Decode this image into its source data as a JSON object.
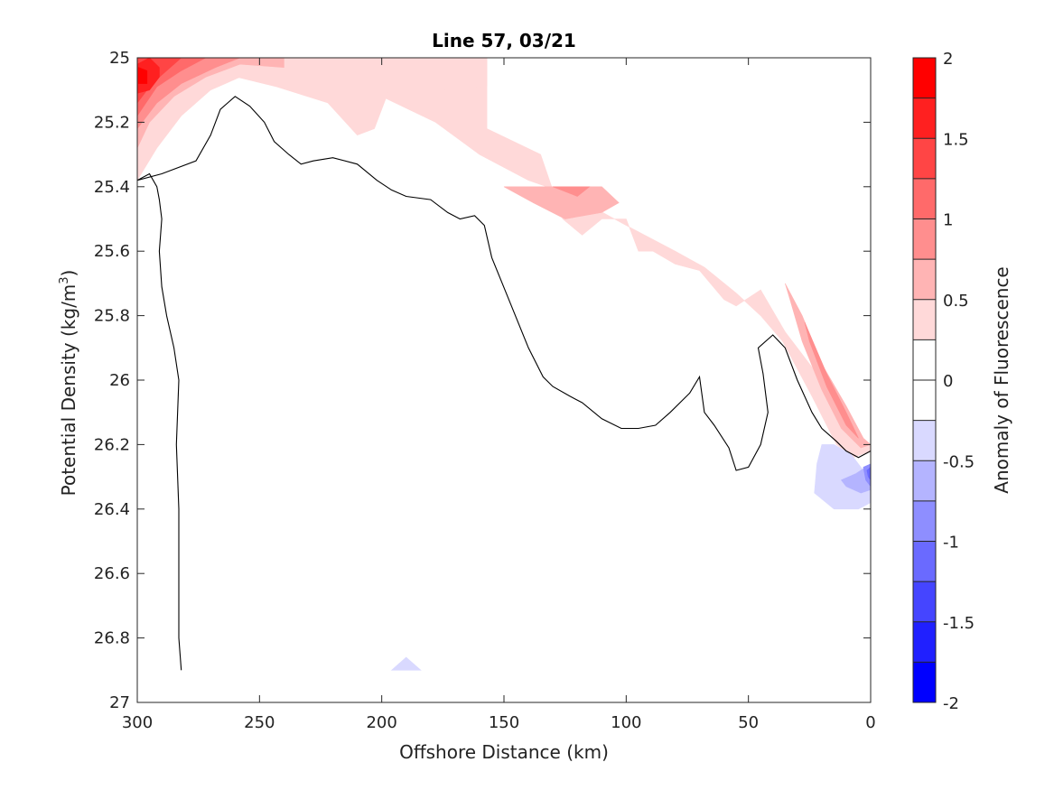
{
  "chart_data": {
    "type": "contour",
    "title": "Line 57, 03/21",
    "xlabel": "Offshore Distance (km)",
    "ylabel_main": "Potential Density (kg/m",
    "ylabel_sup": "3",
    "ylabel_close": ")",
    "xlim": [
      300,
      0
    ],
    "ylim": [
      27,
      25
    ],
    "x_reversed": true,
    "y_reversed": true,
    "xticks": [
      300,
      250,
      200,
      150,
      100,
      50,
      0
    ],
    "xtick_labels": [
      "300",
      "250",
      "200",
      "150",
      "100",
      "50",
      "0"
    ],
    "yticks": [
      25,
      25.2,
      25.4,
      25.6,
      25.8,
      26,
      26.2,
      26.4,
      26.6,
      26.8,
      27
    ],
    "ytick_labels": [
      "25",
      "25.2",
      "25.4",
      "25.6",
      "25.8",
      "26",
      "26.2",
      "26.4",
      "26.6",
      "26.8",
      "27"
    ],
    "grid": false,
    "colorbar": {
      "label": "Anomaly of Fluorescence",
      "range": [
        -2,
        2
      ],
      "tick_values": [
        2,
        1.5,
        1,
        0.5,
        0,
        -0.5,
        -1,
        -1.5,
        -2
      ],
      "tick_labels": [
        "2",
        "1.5",
        "1",
        "0.5",
        "0",
        "-0.5",
        "-1",
        "-1.5",
        "-2"
      ],
      "bins": [
        {
          "lo": 1.75,
          "hi": 2.0,
          "color": "#ff0000"
        },
        {
          "lo": 1.5,
          "hi": 1.75,
          "color": "#ff2020"
        },
        {
          "lo": 1.25,
          "hi": 1.5,
          "color": "#ff4545"
        },
        {
          "lo": 1.0,
          "hi": 1.25,
          "color": "#ff6a6a"
        },
        {
          "lo": 0.75,
          "hi": 1.0,
          "color": "#ff8e8e"
        },
        {
          "lo": 0.5,
          "hi": 0.75,
          "color": "#ffb4b4"
        },
        {
          "lo": 0.25,
          "hi": 0.5,
          "color": "#ffd9d9"
        },
        {
          "lo": 0.0,
          "hi": 0.25,
          "color": "#ffffff"
        },
        {
          "lo": -0.25,
          "hi": 0.0,
          "color": "#ffffff"
        },
        {
          "lo": -0.5,
          "hi": -0.25,
          "color": "#d9d9ff"
        },
        {
          "lo": -0.75,
          "hi": -0.5,
          "color": "#b4b4ff"
        },
        {
          "lo": -1.0,
          "hi": -0.75,
          "color": "#8e8eff"
        },
        {
          "lo": -1.25,
          "hi": -1.0,
          "color": "#6a6aff"
        },
        {
          "lo": -1.5,
          "hi": -1.25,
          "color": "#4545ff"
        },
        {
          "lo": -1.75,
          "hi": -1.5,
          "color": "#2020ff"
        },
        {
          "lo": -2.0,
          "hi": -1.75,
          "color": "#0000ff"
        }
      ]
    },
    "regions": [
      {
        "level": 0.25,
        "color": "#ffd9d9",
        "points": [
          [
            300,
            25.38
          ],
          [
            300,
            25.0
          ],
          [
            157,
            25.0
          ],
          [
            157,
            25.22
          ],
          [
            135,
            25.3
          ],
          [
            126,
            25.5
          ],
          [
            118,
            25.55
          ],
          [
            110,
            25.5
          ],
          [
            100,
            25.5
          ],
          [
            95,
            25.6
          ],
          [
            89,
            25.6
          ],
          [
            80,
            25.64
          ],
          [
            70,
            25.66
          ],
          [
            60,
            25.75
          ],
          [
            55,
            25.77
          ],
          [
            45,
            25.72
          ],
          [
            35,
            25.85
          ],
          [
            25,
            25.95
          ],
          [
            15,
            26.05
          ],
          [
            5,
            26.18
          ],
          [
            0,
            26.2
          ],
          [
            0,
            26.22
          ],
          [
            7,
            26.24
          ],
          [
            14,
            26.2
          ],
          [
            24,
            26.05
          ],
          [
            36,
            25.88
          ],
          [
            45,
            25.8
          ],
          [
            55,
            25.73
          ],
          [
            68,
            25.65
          ],
          [
            80,
            25.6
          ],
          [
            90,
            25.56
          ],
          [
            100,
            25.52
          ],
          [
            112,
            25.47
          ],
          [
            125,
            25.42
          ],
          [
            140,
            25.38
          ],
          [
            160,
            25.3
          ],
          [
            178,
            25.2
          ],
          [
            200,
            25.12
          ],
          [
            218,
            25.06
          ],
          [
            238,
            25.04
          ],
          [
            255,
            25.05
          ],
          [
            270,
            25.1
          ],
          [
            282,
            25.18
          ],
          [
            292,
            25.28
          ]
        ]
      },
      {
        "level": 0.25,
        "color": "#ffd9d9",
        "points": [
          [
            300,
            25.0
          ],
          [
            157,
            25.0
          ],
          [
            157,
            25.09
          ],
          [
            175,
            25.1
          ],
          [
            197,
            25.1
          ],
          [
            203,
            25.22
          ],
          [
            210,
            25.24
          ],
          [
            222,
            25.14
          ],
          [
            243,
            25.09
          ],
          [
            270,
            25.04
          ],
          [
            300,
            25.04
          ]
        ]
      },
      {
        "level": 0.5,
        "color": "#ffb4b4",
        "points": [
          [
            300,
            25.28
          ],
          [
            300,
            25.0
          ],
          [
            240,
            25.0
          ],
          [
            240,
            25.03
          ],
          [
            258,
            25.02
          ],
          [
            272,
            25.06
          ],
          [
            285,
            25.12
          ],
          [
            295,
            25.2
          ]
        ]
      },
      {
        "level": 0.5,
        "color": "#ffb4b4",
        "points": [
          [
            150,
            25.4
          ],
          [
            110,
            25.4
          ],
          [
            103,
            25.45
          ],
          [
            110,
            25.48
          ],
          [
            125,
            25.5
          ],
          [
            138,
            25.45
          ]
        ]
      },
      {
        "level": 0.5,
        "color": "#ffb4b4",
        "points": [
          [
            35,
            25.7
          ],
          [
            28,
            25.8
          ],
          [
            20,
            25.95
          ],
          [
            10,
            26.08
          ],
          [
            3,
            26.18
          ],
          [
            0,
            26.2
          ],
          [
            4,
            26.21
          ],
          [
            12,
            26.15
          ],
          [
            20,
            26.03
          ],
          [
            28,
            25.88
          ],
          [
            33,
            25.75
          ]
        ]
      },
      {
        "level": 0.75,
        "color": "#ff8e8e",
        "points": [
          [
            300,
            25.22
          ],
          [
            300,
            25.0
          ],
          [
            258,
            25.0
          ],
          [
            268,
            25.03
          ],
          [
            282,
            25.08
          ],
          [
            292,
            25.14
          ]
        ]
      },
      {
        "level": 0.75,
        "color": "#ff8e8e",
        "points": [
          [
            130,
            25.4
          ],
          [
            115,
            25.4
          ],
          [
            120,
            25.43
          ]
        ]
      },
      {
        "level": 0.75,
        "color": "#ff8e8e",
        "points": [
          [
            27,
            25.82
          ],
          [
            18,
            25.98
          ],
          [
            10,
            26.1
          ],
          [
            5,
            26.18
          ],
          [
            10,
            26.14
          ],
          [
            18,
            26.02
          ],
          [
            25,
            25.88
          ]
        ]
      },
      {
        "level": 1.0,
        "color": "#ff6a6a",
        "points": [
          [
            300,
            25.18
          ],
          [
            300,
            25.0
          ],
          [
            272,
            25.0
          ],
          [
            282,
            25.04
          ],
          [
            292,
            25.09
          ]
        ]
      },
      {
        "level": 1.25,
        "color": "#ff4545",
        "points": [
          [
            300,
            25.14
          ],
          [
            300,
            25.0
          ],
          [
            282,
            25.0
          ],
          [
            288,
            25.04
          ],
          [
            294,
            25.08
          ]
        ]
      },
      {
        "level": 1.5,
        "color": "#ff2020",
        "points": [
          [
            300,
            25.11
          ],
          [
            300,
            25.02
          ],
          [
            295,
            25.0
          ],
          [
            291,
            25.03
          ],
          [
            291,
            25.06
          ],
          [
            295,
            25.1
          ]
        ]
      },
      {
        "level": 1.75,
        "color": "#ff0000",
        "points": [
          [
            299.5,
            25.08
          ],
          [
            299.5,
            25.03
          ],
          [
            296,
            25.04
          ],
          [
            296,
            25.08
          ]
        ]
      },
      {
        "level": -0.25,
        "color": "#d9d9ff",
        "points": [
          [
            20,
            26.2
          ],
          [
            15,
            26.2
          ],
          [
            8,
            26.23
          ],
          [
            3,
            26.28
          ],
          [
            0,
            26.27
          ],
          [
            0,
            26.38
          ],
          [
            5,
            26.4
          ],
          [
            15,
            26.4
          ],
          [
            23,
            26.35
          ],
          [
            22,
            26.26
          ]
        ]
      },
      {
        "level": -0.5,
        "color": "#b4b4ff",
        "points": [
          [
            12,
            26.31
          ],
          [
            6,
            26.29
          ],
          [
            2,
            26.27
          ],
          [
            0,
            26.28
          ],
          [
            0,
            26.34
          ],
          [
            4,
            26.35
          ],
          [
            10,
            26.33
          ]
        ]
      },
      {
        "level": -0.75,
        "color": "#8e8eff",
        "points": [
          [
            3,
            26.27
          ],
          [
            0,
            26.26
          ],
          [
            0,
            26.33
          ],
          [
            2,
            26.31
          ]
        ]
      },
      {
        "level": -1.0,
        "color": "#6a6aff",
        "points": [
          [
            1.5,
            26.28
          ],
          [
            0,
            26.27
          ],
          [
            0,
            26.31
          ],
          [
            1,
            26.3
          ]
        ]
      },
      {
        "level": -0.25,
        "color": "#d9d9ff",
        "points": [
          [
            196,
            26.9
          ],
          [
            190,
            26.86
          ],
          [
            184,
            26.9
          ]
        ]
      }
    ],
    "zero_contour": [
      [
        282,
        26.9
      ],
      [
        283,
        26.8
      ],
      [
        283,
        26.5
      ],
      [
        283,
        26.4
      ],
      [
        284,
        26.2
      ],
      [
        283,
        26.0
      ],
      [
        285,
        25.9
      ],
      [
        288,
        25.8
      ],
      [
        290,
        25.71
      ],
      [
        291,
        25.6
      ],
      [
        290,
        25.5
      ],
      [
        291,
        25.44
      ],
      [
        292,
        25.4
      ],
      [
        295,
        25.36
      ],
      [
        300,
        25.38
      ],
      [
        290,
        25.36
      ],
      [
        276,
        25.32
      ],
      [
        270,
        25.24
      ],
      [
        266,
        25.16
      ],
      [
        260,
        25.12
      ],
      [
        254,
        25.15
      ],
      [
        248,
        25.2
      ],
      [
        244,
        25.26
      ],
      [
        238,
        25.3
      ],
      [
        233,
        25.33
      ],
      [
        228,
        25.32
      ],
      [
        220,
        25.31
      ],
      [
        210,
        25.33
      ],
      [
        202,
        25.38
      ],
      [
        196,
        25.41
      ],
      [
        190,
        25.43
      ],
      [
        180,
        25.44
      ],
      [
        173,
        25.48
      ],
      [
        168,
        25.5
      ],
      [
        162,
        25.49
      ],
      [
        158,
        25.52
      ],
      [
        155,
        25.62
      ],
      [
        148,
        25.75
      ],
      [
        140,
        25.9
      ],
      [
        134,
        25.99
      ],
      [
        130,
        26.02
      ],
      [
        123,
        26.05
      ],
      [
        118,
        26.07
      ],
      [
        110,
        26.12
      ],
      [
        102,
        26.15
      ],
      [
        95,
        26.15
      ],
      [
        88,
        26.14
      ],
      [
        82,
        26.1
      ],
      [
        74,
        26.04
      ],
      [
        70,
        25.99
      ],
      [
        68,
        26.1
      ],
      [
        64,
        26.14
      ],
      [
        58,
        26.21
      ],
      [
        55,
        26.28
      ],
      [
        50,
        26.27
      ],
      [
        45,
        26.2
      ],
      [
        42,
        26.1
      ],
      [
        44,
        25.98
      ],
      [
        46,
        25.9
      ],
      [
        40,
        25.86
      ],
      [
        35,
        25.9
      ],
      [
        30,
        26.0
      ],
      [
        24,
        26.1
      ],
      [
        20,
        26.15
      ],
      [
        14,
        26.19
      ],
      [
        10,
        26.22
      ],
      [
        5,
        26.24
      ],
      [
        0,
        26.22
      ]
    ]
  }
}
